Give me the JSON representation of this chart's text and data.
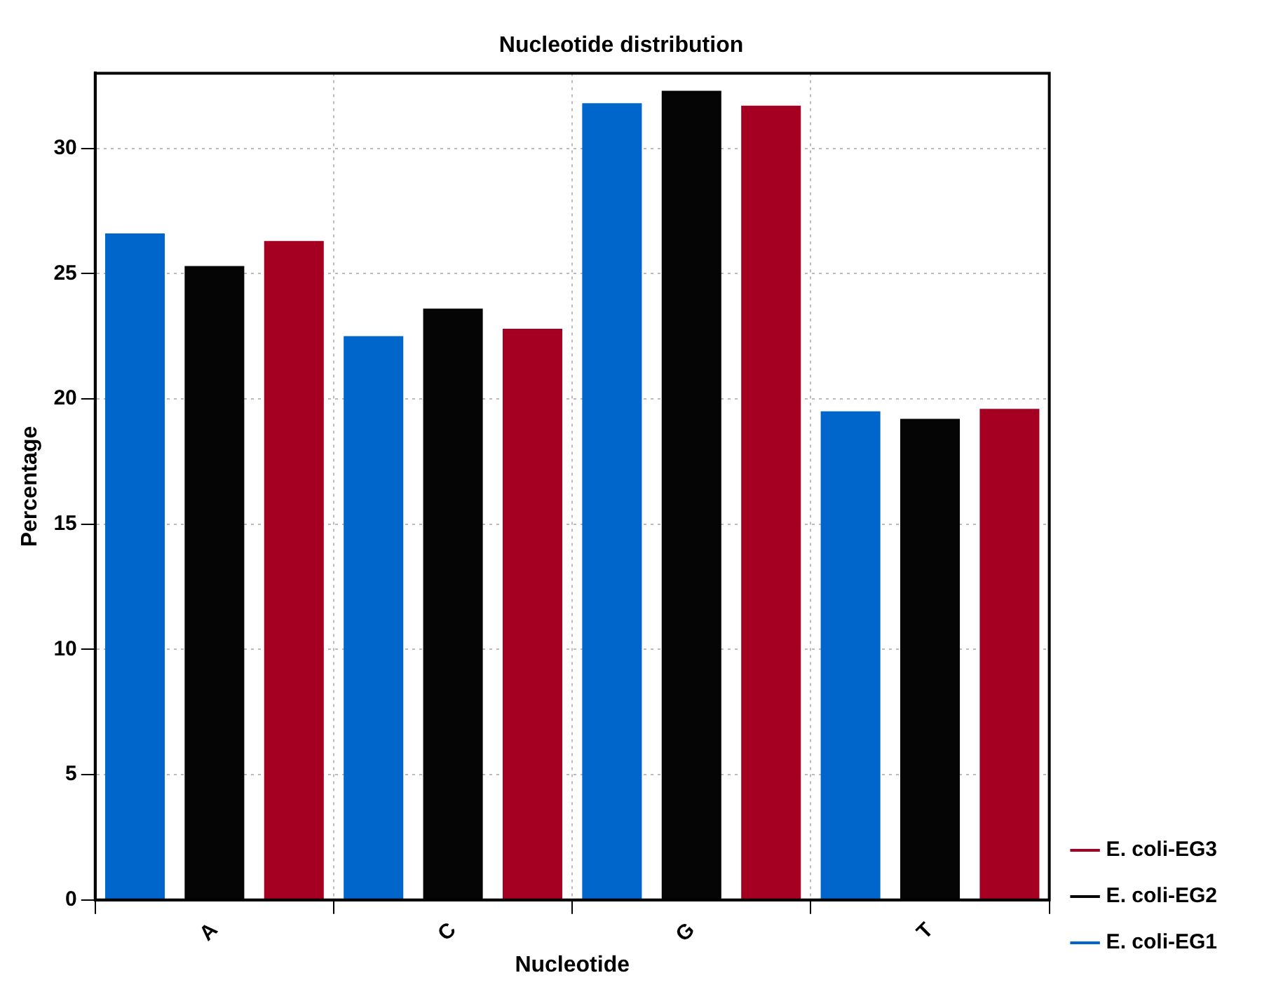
{
  "chart_data": {
    "type": "bar",
    "title": "Nucleotide distribution",
    "xlabel": "Nucleotide",
    "ylabel": "Percentage",
    "categories": [
      "A",
      "C",
      "G",
      "T"
    ],
    "series": [
      {
        "name": "E. coli-EG1",
        "color": "#0066cc",
        "values": [
          26.6,
          22.5,
          31.8,
          19.5
        ]
      },
      {
        "name": "E. coli-EG2",
        "color": "#050505",
        "values": [
          25.3,
          23.6,
          32.3,
          19.2
        ]
      },
      {
        "name": "E. coli-EG3",
        "color": "#a50021",
        "values": [
          26.3,
          22.8,
          31.7,
          19.6
        ]
      }
    ],
    "ylim": [
      0,
      33
    ],
    "yticks": [
      0,
      5,
      10,
      15,
      20,
      25,
      30
    ],
    "grid": true,
    "legend": "bottom right"
  }
}
